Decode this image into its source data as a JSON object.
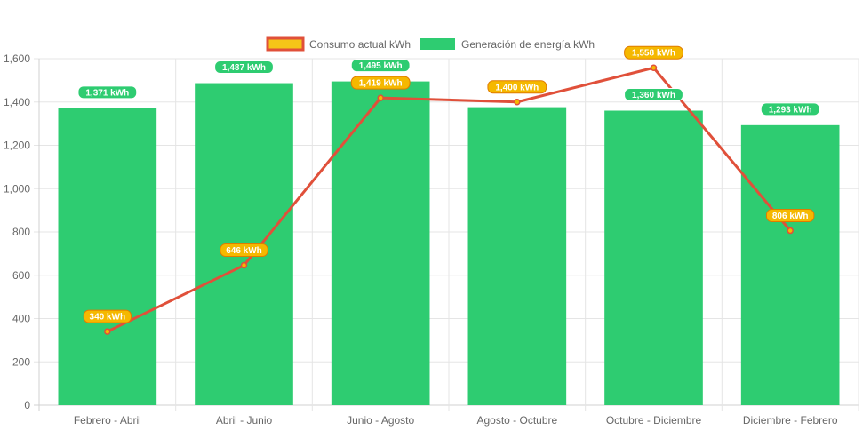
{
  "chart_data": {
    "type": "bar",
    "categories": [
      "Febrero - Abril",
      "Abril - Junio",
      "Junio - Agosto",
      "Agosto - Octubre",
      "Octubre - Diciembre",
      "Diciembre - Febrero"
    ],
    "series": [
      {
        "name": "Consumo actual kWh",
        "type": "line",
        "values": [
          340,
          646,
          1419,
          1400,
          1558,
          806
        ],
        "labels": [
          "340 kWh",
          "646 kWh",
          "1,419 kWh",
          "1,400 kWh",
          "1,558 kWh",
          "806 kWh"
        ],
        "color": "#e0503a",
        "label_color": "#f5b800"
      },
      {
        "name": "Generación de energía kWh",
        "type": "bar",
        "values": [
          1371,
          1487,
          1495,
          1376,
          1360,
          1293
        ],
        "labels": [
          "1,371 kWh",
          "1,487 kWh",
          "1,495 kWh",
          "",
          "1,360 kWh",
          "1,293 kWh"
        ],
        "color": "#2ecc71"
      }
    ],
    "y_ticks": [
      "0",
      "200",
      "400",
      "600",
      "800",
      "1,000",
      "1,200",
      "1,400",
      "1,600"
    ],
    "ylim": [
      0,
      1600
    ],
    "grid": true,
    "legend_position": "top-center"
  }
}
